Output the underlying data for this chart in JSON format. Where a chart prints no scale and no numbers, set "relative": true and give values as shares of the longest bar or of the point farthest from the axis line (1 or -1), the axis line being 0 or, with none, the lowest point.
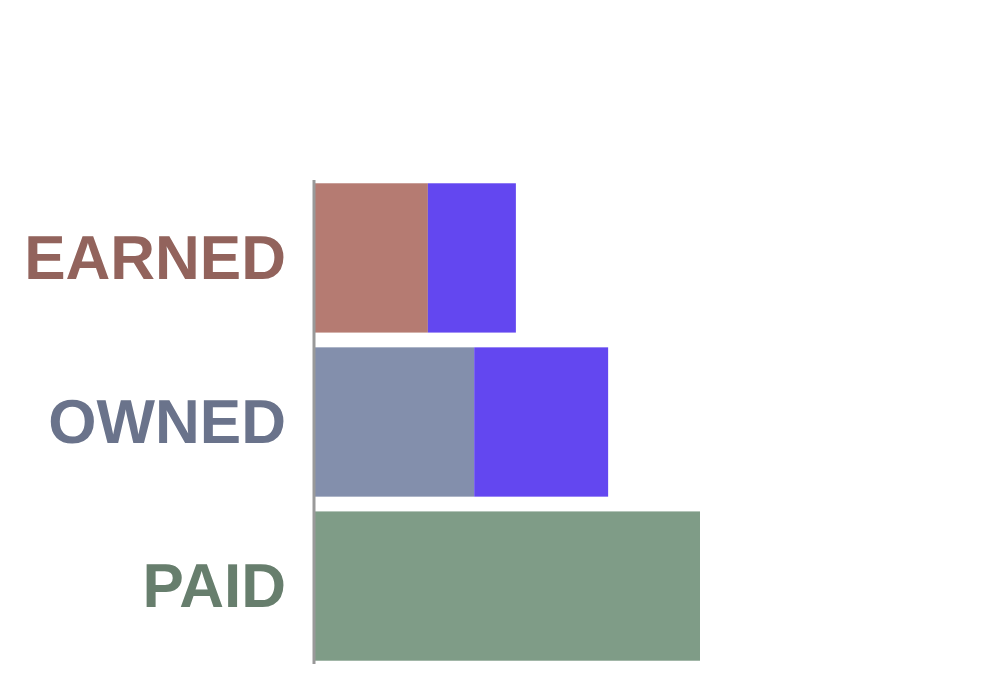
{
  "chart_data": {
    "type": "bar",
    "orientation": "horizontal",
    "stacked": true,
    "relative": true,
    "categories": [
      "EARNED",
      "OWNED",
      "PAID"
    ],
    "series": [
      {
        "colors": [
          "#b57b72",
          "#838fac",
          "#7f9c87"
        ],
        "values": [
          0.295,
          0.415,
          1
        ]
      },
      {
        "color": "#6347f0",
        "values": [
          0.228,
          0.347,
          null
        ]
      }
    ]
  }
}
